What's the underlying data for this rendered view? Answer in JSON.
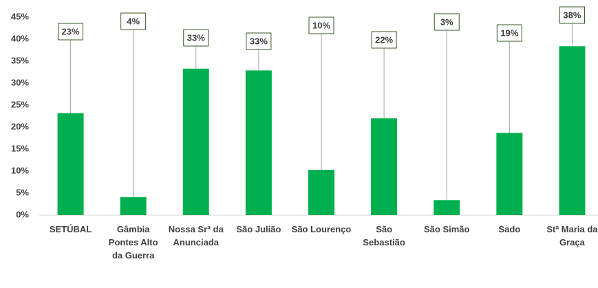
{
  "chart_data": {
    "type": "bar",
    "categories": [
      "SETÚBAL",
      "Gâmbia Pontes Alto da Guerra",
      "Nossa Srª da Anunciada",
      "São Julião",
      "São Lourenço",
      "São Sebastião",
      "São Simão",
      "Sado",
      "Stª Maria da Graça"
    ],
    "values": [
      23.2,
      4.1,
      33.3,
      32.9,
      10.3,
      22.0,
      3.4,
      18.7,
      38.4
    ],
    "value_labels": [
      "23%",
      "4%",
      "33%",
      "33%",
      "10%",
      "22%",
      "3%",
      "19%",
      "38%"
    ],
    "color": "#00b050",
    "ylim": [
      0,
      45
    ],
    "yticks": [
      {
        "value": 0,
        "label": "0%"
      },
      {
        "value": 5,
        "label": "5%"
      },
      {
        "value": 10,
        "label": "10%"
      },
      {
        "value": 15,
        "label": "15%"
      },
      {
        "value": 20,
        "label": "20%"
      },
      {
        "value": 25,
        "label": "25%"
      },
      {
        "value": 30,
        "label": "30%"
      },
      {
        "value": 35,
        "label": "35%"
      },
      {
        "value": 40,
        "label": "40%"
      },
      {
        "value": 45,
        "label": "45%"
      }
    ],
    "grid": false
  }
}
